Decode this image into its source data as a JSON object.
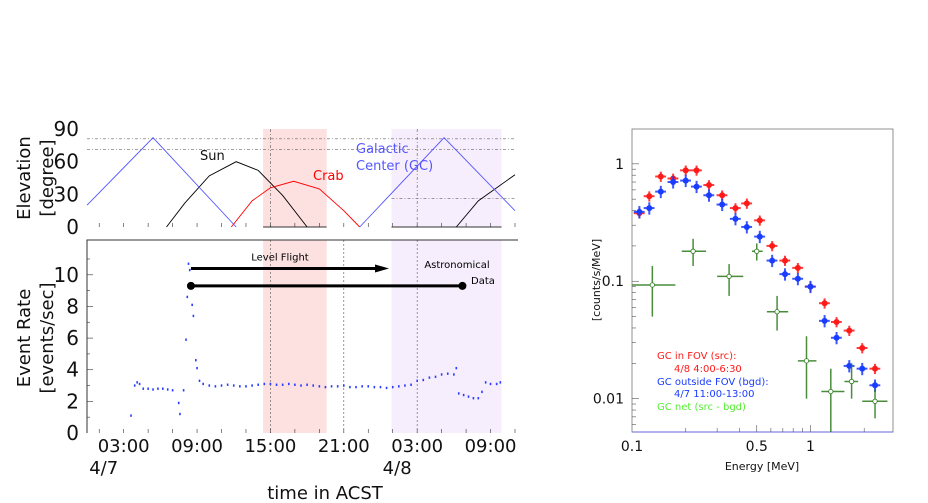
{
  "chart_data": [
    {
      "type": "line",
      "title": "",
      "ylabel_lines": [
        "Elevation",
        "[degree]"
      ],
      "yticks": [
        0,
        30,
        60,
        90
      ],
      "ylim": [
        0,
        90
      ],
      "xlim": [
        0,
        35
      ],
      "shaded_regions": [
        {
          "from": 14.4,
          "to": 19.6,
          "color": "#fde1e1"
        },
        {
          "from": 24.9,
          "to": 33.9,
          "color": "#f6eefd"
        }
      ],
      "series": [
        {
          "name": "Sun",
          "color": "#000000",
          "label": "Sun",
          "segments": [
            [
              [
                6.5,
                0
              ],
              [
                8,
                22
              ],
              [
                10,
                47
              ],
              [
                12.2,
                60
              ],
              [
                14,
                52
              ],
              [
                16,
                29
              ],
              [
                18,
                0
              ]
            ],
            [
              [
                30.2,
                0
              ],
              [
                32,
                24
              ],
              [
                35,
                48
              ]
            ]
          ]
        },
        {
          "name": "Crab",
          "color": "#ff0000",
          "label": "Crab",
          "segments": [
            [
              [
                11.8,
                0
              ],
              [
                13.5,
                24
              ],
              [
                15,
                36
              ],
              [
                16.9,
                42
              ],
              [
                19,
                35
              ],
              [
                21,
                15
              ],
              [
                22.3,
                0
              ]
            ]
          ]
        },
        {
          "name": "Galactic Center (GC)",
          "color": "#5555ff",
          "label_lines": [
            "Galactic",
            "Center (GC)"
          ],
          "segments": [
            [
              [
                0,
                20
              ],
              [
                5.4,
                82
              ],
              [
                12.2,
                0
              ]
            ],
            [
              [
                22.3,
                0
              ],
              [
                29.2,
                82
              ],
              [
                35,
                15
              ]
            ]
          ]
        }
      ]
    },
    {
      "type": "scatter",
      "ylabel_lines": [
        "Event Rate",
        "[events/sec]"
      ],
      "xlabel": "time in ACST",
      "yticks": [
        0,
        2,
        4,
        6,
        8,
        10
      ],
      "ylim": [
        0,
        12.2
      ],
      "xlim": [
        0,
        35
      ],
      "xticks": [
        {
          "h": 3,
          "label": "03:00",
          "date": "4/7"
        },
        {
          "h": 9,
          "label": "09:00",
          "date": ""
        },
        {
          "h": 15,
          "label": "15:00",
          "date": ""
        },
        {
          "h": 21,
          "label": "21:00",
          "date": ""
        },
        {
          "h": 27,
          "label": "03:00",
          "date": "4/8"
        },
        {
          "h": 33,
          "label": "09:00",
          "date": ""
        }
      ],
      "annotations": {
        "level_flight": {
          "label": "Level Flight",
          "from": 8.5,
          "to": 24.7,
          "y": 10.4
        },
        "astronomical_data": {
          "label_lines": [
            "Astronomical",
            "Data"
          ],
          "from": 8.5,
          "to": 30.7,
          "y": 9.3
        }
      },
      "color": "#2a3cff",
      "points": [
        [
          3.6,
          1.1
        ],
        [
          3.9,
          3.0
        ],
        [
          4.1,
          3.2
        ],
        [
          4.3,
          3.1
        ],
        [
          4.6,
          2.8
        ],
        [
          5.0,
          2.8
        ],
        [
          5.4,
          2.75
        ],
        [
          5.8,
          2.8
        ],
        [
          6.2,
          2.8
        ],
        [
          6.6,
          2.75
        ],
        [
          7.0,
          2.7
        ],
        [
          7.5,
          1.9
        ],
        [
          7.6,
          1.2
        ],
        [
          7.9,
          2.7
        ],
        [
          8.1,
          5.9
        ],
        [
          8.2,
          8.6
        ],
        [
          8.3,
          10.7
        ],
        [
          8.4,
          10.3
        ],
        [
          8.6,
          8.1
        ],
        [
          8.7,
          7.4
        ],
        [
          8.9,
          4.6
        ],
        [
          9.0,
          4.1
        ],
        [
          9.2,
          3.3
        ],
        [
          9.5,
          3.1
        ],
        [
          10,
          3.0
        ],
        [
          10.5,
          2.95
        ],
        [
          11,
          3.0
        ],
        [
          11.5,
          3.05
        ],
        [
          12,
          3.0
        ],
        [
          12.5,
          2.95
        ],
        [
          13,
          2.95
        ],
        [
          13.5,
          3.0
        ],
        [
          14,
          3.05
        ],
        [
          14.5,
          3.1
        ],
        [
          15,
          3.1
        ],
        [
          15.5,
          3.05
        ],
        [
          16,
          3.05
        ],
        [
          16.5,
          3.1
        ],
        [
          17,
          3.05
        ],
        [
          17.5,
          3.0
        ],
        [
          18,
          3.05
        ],
        [
          18.5,
          3.0
        ],
        [
          19,
          2.95
        ],
        [
          19.5,
          2.9
        ],
        [
          20,
          2.95
        ],
        [
          20.5,
          2.95
        ],
        [
          21,
          3.0
        ],
        [
          21.5,
          2.9
        ],
        [
          22,
          2.9
        ],
        [
          22.5,
          2.95
        ],
        [
          23,
          2.95
        ],
        [
          23.5,
          2.9
        ],
        [
          24,
          2.9
        ],
        [
          24.5,
          2.85
        ],
        [
          25,
          2.9
        ],
        [
          25.5,
          2.95
        ],
        [
          26,
          3.0
        ],
        [
          26.5,
          3.05
        ],
        [
          27,
          3.3
        ],
        [
          27.5,
          3.35
        ],
        [
          28,
          3.5
        ],
        [
          28.5,
          3.55
        ],
        [
          29,
          3.7
        ],
        [
          29.5,
          3.75
        ],
        [
          30,
          3.7
        ],
        [
          30.2,
          4.1
        ],
        [
          30.4,
          2.5
        ],
        [
          30.8,
          2.4
        ],
        [
          31.2,
          2.3
        ],
        [
          31.6,
          2.2
        ],
        [
          32,
          2.2
        ],
        [
          32.3,
          2.6
        ],
        [
          32.6,
          3.2
        ],
        [
          33,
          3.1
        ],
        [
          33.5,
          3.1
        ],
        [
          33.8,
          3.2
        ]
      ]
    },
    {
      "type": "scatter",
      "xlabel": "Energy [MeV]",
      "ylabel": "[counts/s/MeV]",
      "xscale": "log",
      "yscale": "log",
      "xlim": [
        0.1,
        2.9
      ],
      "ylim": [
        0.0052,
        1.98
      ],
      "xticklabels": [
        {
          "v": 0.1,
          "label": "0.1"
        },
        {
          "v": 0.5,
          "label": "0.5"
        },
        {
          "v": 1,
          "label": "1"
        }
      ],
      "yticklabels": [
        {
          "v": 1,
          "label": "1"
        },
        {
          "v": 0.1,
          "label": "0.1"
        },
        {
          "v": 0.01,
          "label": "0.01"
        }
      ],
      "series": [
        {
          "name": "GC in FOV (src):",
          "detail": "4/8 4:00-6:30",
          "color": "#ff1a1a",
          "marker": "filled",
          "xerr_frac": 0.07,
          "yerr_frac": 0.1,
          "x": [
            0.11,
            0.125,
            0.145,
            0.17,
            0.2,
            0.23,
            0.27,
            0.32,
            0.38,
            0.44,
            0.52,
            0.61,
            0.72,
            0.85,
            1.0,
            1.2,
            1.4,
            1.65,
            1.95,
            2.3
          ],
          "y": [
            0.38,
            0.53,
            0.78,
            0.75,
            0.88,
            0.88,
            0.66,
            0.54,
            0.42,
            0.46,
            0.33,
            0.2,
            0.15,
            0.13,
            0.09,
            0.065,
            0.045,
            0.038,
            0.027,
            0.018
          ]
        },
        {
          "name": "GC outside FOV (bgd):",
          "detail": "4/7 11:00-13:00",
          "color": "#1a3cff",
          "marker": "filled",
          "xerr_frac": 0.07,
          "yerr_frac": 0.12,
          "x": [
            0.11,
            0.125,
            0.145,
            0.17,
            0.2,
            0.23,
            0.27,
            0.32,
            0.38,
            0.44,
            0.52,
            0.61,
            0.72,
            0.85,
            1.0,
            1.2,
            1.4,
            1.65,
            1.95,
            2.3
          ],
          "y": [
            0.39,
            0.42,
            0.58,
            0.7,
            0.72,
            0.64,
            0.54,
            0.45,
            0.34,
            0.29,
            0.24,
            0.15,
            0.115,
            0.105,
            0.09,
            0.046,
            0.033,
            0.019,
            0.018,
            0.013
          ]
        },
        {
          "name": "GC net (src - bgd)",
          "detail": "",
          "color": "#2a7a1a",
          "legend_color": "#55ee33",
          "marker": "open",
          "x": [
            0.13,
            0.22,
            0.35,
            0.5,
            0.65,
            0.95,
            1.3,
            1.7,
            2.3
          ],
          "y": [
            0.093,
            0.18,
            0.11,
            0.18,
            0.055,
            0.021,
            0.0115,
            0.014,
            0.0095
          ],
          "xerr": [
            [
              0.1,
              0.175
            ],
            [
              0.19,
              0.26
            ],
            [
              0.3,
              0.42
            ],
            [
              0.47,
              0.54
            ],
            [
              0.57,
              0.75
            ],
            [
              0.85,
              1.08
            ],
            [
              1.15,
              1.55
            ],
            [
              1.55,
              1.85
            ],
            [
              1.95,
              2.7
            ]
          ],
          "yerr": [
            [
              0.05,
              0.135
            ],
            [
              0.135,
              0.23
            ],
            [
              0.075,
              0.14
            ],
            [
              0.15,
              0.21
            ],
            [
              0.038,
              0.075
            ],
            [
              0.01,
              0.034
            ],
            [
              0.004,
              0.018
            ],
            [
              0.01,
              0.02
            ],
            [
              0.0068,
              0.012
            ]
          ]
        }
      ]
    }
  ]
}
